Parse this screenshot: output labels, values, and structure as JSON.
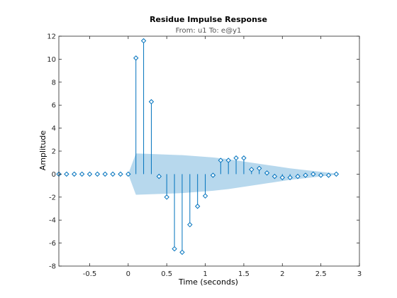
{
  "chart_data": {
    "type": "stem",
    "title": "Residue Impulse Response",
    "subtitle": "From: u1  To: e@y1",
    "xlabel": "Time (seconds)",
    "ylabel": "Amplitude",
    "xlim": [
      -0.9,
      3
    ],
    "ylim": [
      -8,
      12
    ],
    "xticks": [
      -0.5,
      0,
      0.5,
      1,
      1.5,
      2,
      2.5,
      3
    ],
    "xtick_labels": [
      "-0.5",
      "0",
      "0.5",
      "1",
      "1.5",
      "2",
      "2.5",
      "3"
    ],
    "yticks": [
      -8,
      -6,
      -4,
      -2,
      0,
      2,
      4,
      6,
      8,
      10,
      12
    ],
    "ytick_labels": [
      "-8",
      "-6",
      "-4",
      "-2",
      "0",
      "2",
      "4",
      "6",
      "8",
      "10",
      "12"
    ],
    "grid": false,
    "legend": false,
    "colors": {
      "stem": "#0072bd",
      "band_fill": "#9fcbe7",
      "axes": "#262626"
    },
    "series": [
      {
        "x": [
          -0.9,
          -0.8,
          -0.7,
          -0.6,
          -0.5,
          -0.4,
          -0.3,
          -0.2,
          -0.1,
          0,
          0.1,
          0.2,
          0.3,
          0.4,
          0.5,
          0.6,
          0.7,
          0.8,
          0.9,
          1.0,
          1.1,
          1.2,
          1.3,
          1.4,
          1.5,
          1.6,
          1.7,
          1.8,
          1.9,
          2.0,
          2.1,
          2.2,
          2.3,
          2.4,
          2.5,
          2.6,
          2.7
        ],
        "y": [
          0,
          0,
          0,
          0,
          0,
          0,
          0,
          0,
          0,
          0,
          10.1,
          11.6,
          6.3,
          -0.2,
          -2.0,
          -6.5,
          -6.8,
          -4.4,
          -2.8,
          -1.9,
          -0.1,
          1.2,
          1.2,
          1.4,
          1.4,
          0.4,
          0.5,
          0.1,
          -0.2,
          -0.3,
          -0.3,
          -0.2,
          -0.1,
          0.0,
          -0.1,
          -0.1,
          0.0
        ]
      }
    ],
    "confidence_band": {
      "x": [
        0,
        0.1,
        0.3,
        0.5,
        0.7,
        0.9,
        1.1,
        1.3,
        1.5,
        1.7,
        1.9,
        2.1,
        2.3,
        2.5,
        2.7
      ],
      "upper": [
        0.0,
        1.8,
        1.75,
        1.7,
        1.65,
        1.55,
        1.45,
        1.3,
        1.1,
        0.9,
        0.7,
        0.5,
        0.35,
        0.2,
        0.05
      ],
      "lower": [
        0.0,
        -1.8,
        -1.75,
        -1.7,
        -1.65,
        -1.55,
        -1.45,
        -1.3,
        -1.1,
        -0.9,
        -0.7,
        -0.5,
        -0.35,
        -0.2,
        -0.05
      ]
    }
  }
}
